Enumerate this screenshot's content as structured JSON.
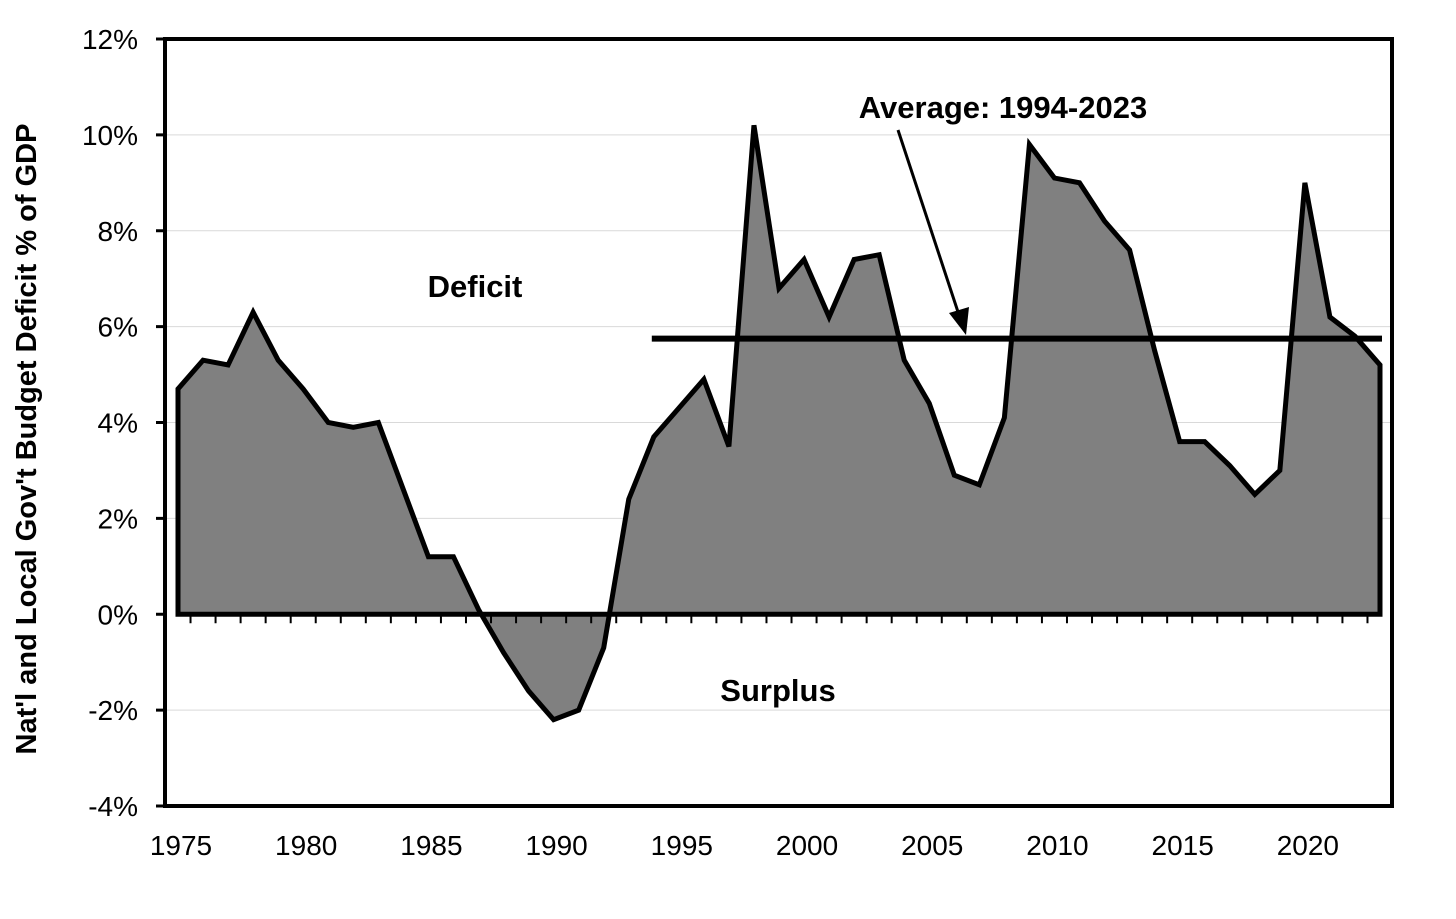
{
  "chart_data": {
    "type": "area",
    "ylabel": "Nat'l and Local Gov't Budget Deficit % of GDP",
    "xlabel": "",
    "ylim": [
      -4,
      12
    ],
    "xlim": [
      1975,
      2023
    ],
    "y_ticks": [
      -4,
      -2,
      0,
      2,
      4,
      6,
      8,
      10,
      12
    ],
    "y_tick_labels": [
      "-4%",
      "-2%",
      "0%",
      "2%",
      "4%",
      "6%",
      "8%",
      "10%",
      "12%"
    ],
    "x_tick_labels": [
      "1975",
      "1980",
      "1985",
      "1990",
      "1995",
      "2000",
      "2005",
      "2010",
      "2015",
      "2020"
    ],
    "x_ticks": [
      1975,
      1980,
      1985,
      1990,
      1995,
      2000,
      2005,
      2010,
      2015,
      2020
    ],
    "grid": "horizontal",
    "fill_color": "#808080",
    "series": [
      {
        "x": [
          1975,
          1976,
          1977,
          1978,
          1979,
          1980,
          1981,
          1982,
          1983,
          1984,
          1985,
          1986,
          1987,
          1988,
          1989,
          1990,
          1991,
          1992,
          1993,
          1994,
          1995,
          1996,
          1997,
          1998,
          1999,
          2000,
          2001,
          2002,
          2003,
          2004,
          2005,
          2006,
          2007,
          2008,
          2009,
          2010,
          2011,
          2012,
          2013,
          2014,
          2015,
          2016,
          2017,
          2018,
          2019,
          2020,
          2021,
          2022,
          2023
        ],
        "values": [
          4.7,
          5.3,
          5.2,
          6.3,
          5.3,
          4.7,
          4.0,
          3.9,
          4.0,
          2.6,
          1.2,
          1.2,
          0.1,
          -0.8,
          -1.6,
          -2.2,
          -2.0,
          -0.7,
          2.4,
          3.7,
          4.3,
          4.9,
          3.5,
          10.2,
          6.8,
          7.4,
          6.2,
          7.4,
          7.5,
          5.3,
          4.4,
          2.9,
          2.7,
          4.1,
          9.8,
          9.1,
          9.0,
          8.2,
          7.6,
          5.5,
          3.6,
          3.6,
          3.1,
          2.5,
          3.0,
          9.0,
          6.2,
          5.8,
          5.2
        ]
      }
    ],
    "average_line": {
      "x_start": 1994,
      "x_end": 2023,
      "value": 5.75
    },
    "annotations": {
      "deficit": "Deficit",
      "surplus": "Surplus",
      "average": "Average: 1994-2023"
    }
  }
}
